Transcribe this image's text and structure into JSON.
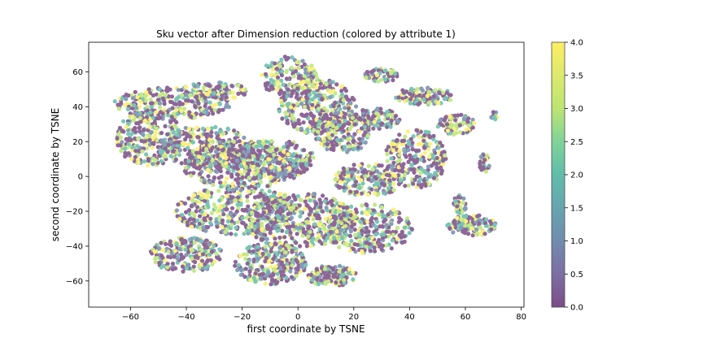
{
  "chart_data": {
    "type": "scatter",
    "title": "Sku vector after Dimension reduction (colored by attribute 1)",
    "xlabel": "first coordinate by TSNE",
    "ylabel": "second coordinate by TSNE",
    "xlim": [
      -75,
      81
    ],
    "ylim": [
      -75,
      77
    ],
    "xticks": [
      -60,
      -40,
      -20,
      0,
      20,
      40,
      60,
      80
    ],
    "yticks": [
      -60,
      -40,
      -20,
      0,
      20,
      40,
      60
    ],
    "colormap": "viridis",
    "point_alpha": 0.6,
    "color_value_range": [
      0,
      4
    ],
    "colorbar": {
      "min": 0,
      "max": 4,
      "ticks": [
        "0.0",
        "0.5",
        "1.0",
        "1.5",
        "2.0",
        "2.5",
        "3.0",
        "3.5",
        "4.0"
      ]
    },
    "clusters": [
      {
        "cx": -45,
        "cy": 42,
        "rx": 21,
        "ry": 9,
        "n": 260
      },
      {
        "cx": -30,
        "cy": 49,
        "rx": 12,
        "ry": 5,
        "n": 100
      },
      {
        "cx": -53,
        "cy": 22,
        "rx": 12,
        "ry": 16,
        "n": 260
      },
      {
        "cx": -33,
        "cy": 17,
        "rx": 17,
        "ry": 12,
        "n": 280
      },
      {
        "cx": -20,
        "cy": 6,
        "rx": 22,
        "ry": 13,
        "n": 340
      },
      {
        "cx": -8,
        "cy": 10,
        "rx": 14,
        "ry": 11,
        "n": 200
      },
      {
        "cx": -3,
        "cy": 57,
        "rx": 10,
        "ry": 12,
        "n": 160
      },
      {
        "cx": 7,
        "cy": 40,
        "rx": 14,
        "ry": 16,
        "n": 300
      },
      {
        "cx": 16,
        "cy": 25,
        "rx": 10,
        "ry": 12,
        "n": 180
      },
      {
        "cx": 28,
        "cy": 33,
        "rx": 9,
        "ry": 6,
        "n": 120
      },
      {
        "cx": 42,
        "cy": 10,
        "rx": 11,
        "ry": 17,
        "n": 240
      },
      {
        "cx": 30,
        "cy": 58,
        "rx": 6,
        "ry": 4,
        "n": 60
      },
      {
        "cx": 45,
        "cy": 46,
        "rx": 11,
        "ry": 5,
        "n": 120
      },
      {
        "cx": 57,
        "cy": 30,
        "rx": 7,
        "ry": 6,
        "n": 80
      },
      {
        "cx": 67,
        "cy": 8,
        "rx": 2,
        "ry": 6,
        "n": 25
      },
      {
        "cx": 70,
        "cy": 35,
        "rx": 1.5,
        "ry": 3,
        "n": 12
      },
      {
        "cx": 25,
        "cy": -2,
        "rx": 12,
        "ry": 10,
        "n": 200
      },
      {
        "cx": -22,
        "cy": -20,
        "rx": 22,
        "ry": 14,
        "n": 380
      },
      {
        "cx": 0,
        "cy": -25,
        "rx": 20,
        "ry": 16,
        "n": 400
      },
      {
        "cx": 25,
        "cy": -30,
        "rx": 16,
        "ry": 14,
        "n": 300
      },
      {
        "cx": -40,
        "cy": -45,
        "rx": 13,
        "ry": 10,
        "n": 220
      },
      {
        "cx": -10,
        "cy": -50,
        "rx": 13,
        "ry": 12,
        "n": 260
      },
      {
        "cx": 12,
        "cy": -57,
        "rx": 9,
        "ry": 6,
        "n": 140
      },
      {
        "cx": 62,
        "cy": -28,
        "rx": 9,
        "ry": 6,
        "n": 120
      },
      {
        "cx": 58,
        "cy": -16,
        "rx": 2.5,
        "ry": 6,
        "n": 35
      }
    ]
  }
}
